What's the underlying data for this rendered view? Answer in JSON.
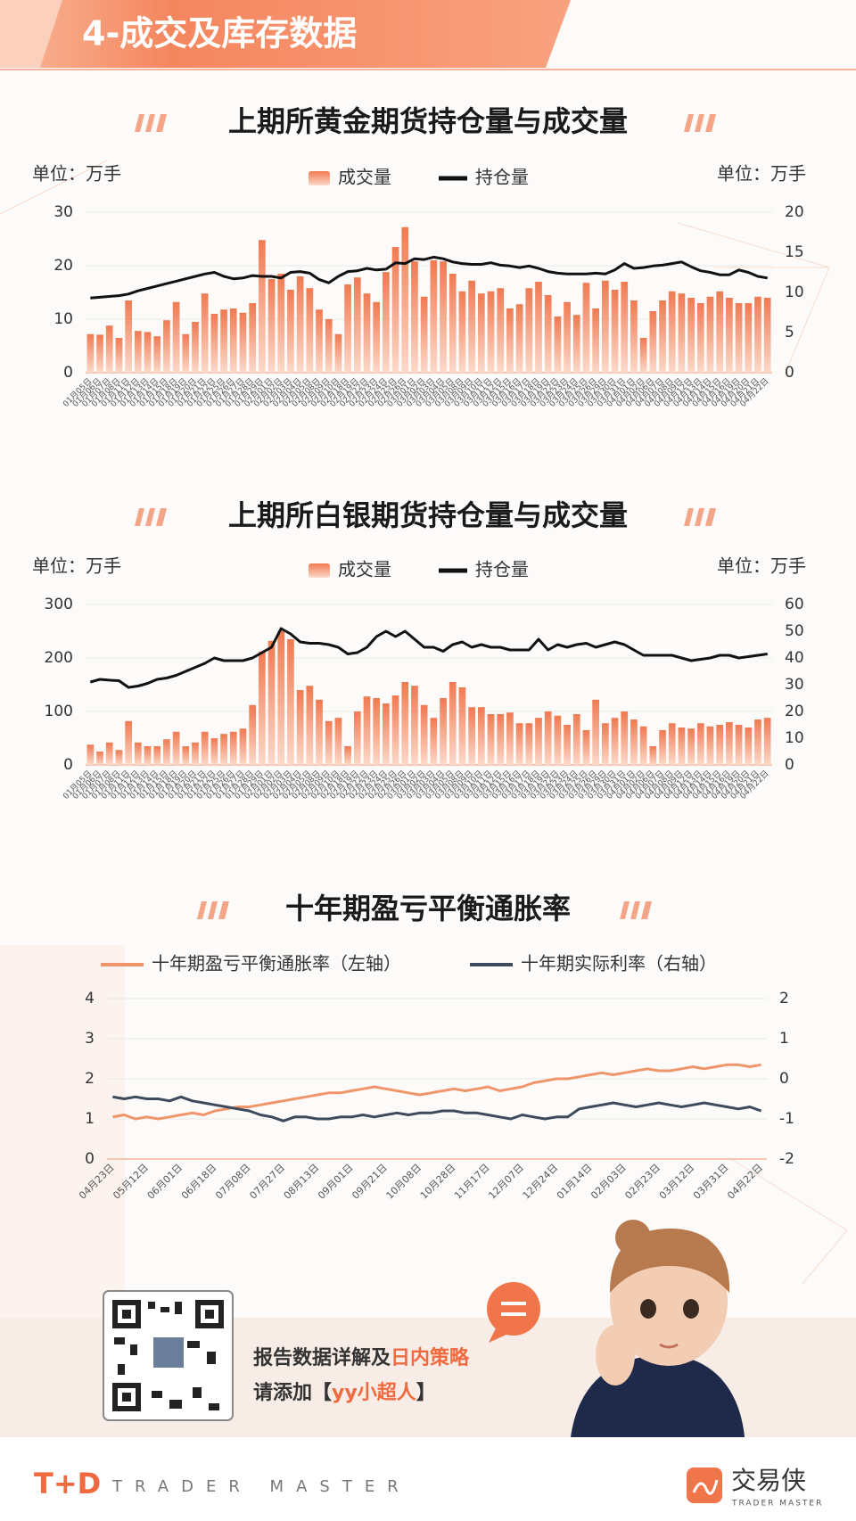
{
  "header": {
    "title": "4-成交及库存数据"
  },
  "chart_data": [
    {
      "type": "combo",
      "title": "上期所黄金期货持仓量与成交量",
      "unit_left": "单位：万手",
      "unit_right": "单位：万手",
      "categories": [
        "01月05日",
        "01月06日",
        "01月07日",
        "01月08日",
        "01月11日",
        "01月12日",
        "01月13日",
        "01月14日",
        "01月15日",
        "01月18日",
        "01月19日",
        "01月20日",
        "01月21日",
        "01月22日",
        "01月25日",
        "01月26日",
        "01月27日",
        "01月28日",
        "01月29日",
        "02月01日",
        "02月02日",
        "02月03日",
        "02月04日",
        "02月05日",
        "02月08日",
        "02月09日",
        "02月10日",
        "02月18日",
        "02月19日",
        "02月22日",
        "02月23日",
        "02月24日",
        "02月25日",
        "02月26日",
        "03月01日",
        "03月02日",
        "03月03日",
        "03月04日",
        "03月05日",
        "03月08日",
        "03月09日",
        "03月10日",
        "03月11日",
        "03月12日",
        "03月15日",
        "03月16日",
        "03月17日",
        "03月18日",
        "03月19日",
        "03月22日",
        "03月23日",
        "03月24日",
        "03月25日",
        "03月26日",
        "03月29日",
        "03月30日",
        "03月31日",
        "04月01日",
        "04月02日",
        "04月06日",
        "04月07日",
        "04月08日",
        "04月09日",
        "04月12日",
        "04月13日",
        "04月14日",
        "04月15日",
        "04月16日",
        "04月19日",
        "04月20日",
        "04月21日",
        "04月22日"
      ],
      "series": [
        {
          "name": "成交量",
          "kind": "bar",
          "color": "#f07a52",
          "values": [
            7.2,
            7.1,
            8.8,
            6.5,
            13.5,
            7.8,
            7.6,
            6.8,
            9.8,
            13.2,
            7.2,
            9.5,
            14.8,
            11.0,
            11.8,
            12.0,
            11.2,
            13.0,
            24.8,
            17.5,
            18.5,
            15.5,
            18.0,
            15.8,
            11.8,
            10.0,
            7.2,
            16.5,
            17.8,
            14.8,
            13.2,
            18.8,
            23.5,
            27.2,
            20.8,
            14.2,
            21.0,
            20.8,
            18.5,
            15.2,
            17.2,
            14.8,
            15.2,
            15.8,
            12.0,
            12.8,
            15.8,
            17.0,
            14.5,
            10.5,
            13.2,
            10.8,
            16.8,
            12.0,
            17.2,
            15.5,
            17.0,
            13.5,
            6.5,
            11.5,
            13.5,
            15.2,
            14.8,
            14.0,
            13.0,
            14.2,
            15.2,
            14.0,
            13.0,
            13.0,
            14.2,
            14.0
          ]
        },
        {
          "name": "持仓量",
          "kind": "line",
          "axis": "y2",
          "color": "#111111",
          "values": [
            9.3,
            9.4,
            9.5,
            9.6,
            9.8,
            10.2,
            10.5,
            10.8,
            11.1,
            11.4,
            11.7,
            12.0,
            12.3,
            12.5,
            12.0,
            11.7,
            11.8,
            12.1,
            12.0,
            12.0,
            11.8,
            12.5,
            12.6,
            12.4,
            11.6,
            11.2,
            12.0,
            12.6,
            12.7,
            13.0,
            12.8,
            12.9,
            13.7,
            13.6,
            14.2,
            14.1,
            14.4,
            14.2,
            13.8,
            13.6,
            13.5,
            13.5,
            13.7,
            13.4,
            13.3,
            13.1,
            13.3,
            13.0,
            12.6,
            12.4,
            12.3,
            12.3,
            12.3,
            12.4,
            12.3,
            12.8,
            13.6,
            13.0,
            13.1,
            13.3,
            13.4,
            13.6,
            13.8,
            13.2,
            12.7,
            12.5,
            12.2,
            12.2,
            12.8,
            12.5,
            12.0,
            11.8
          ]
        }
      ],
      "ylim": [
        0,
        30
      ],
      "yticks": [
        0,
        10,
        20,
        30
      ],
      "y2lim": [
        0,
        20
      ],
      "y2ticks": [
        0,
        5,
        10,
        15,
        20
      ],
      "grid": true
    },
    {
      "type": "combo",
      "title": "上期所白银期货持仓量与成交量",
      "unit_left": "单位：万手",
      "unit_right": "单位：万手",
      "categories": [
        "01月05日",
        "01月06日",
        "01月07日",
        "01月08日",
        "01月11日",
        "01月12日",
        "01月13日",
        "01月14日",
        "01月15日",
        "01月18日",
        "01月19日",
        "01月20日",
        "01月21日",
        "01月22日",
        "01月25日",
        "01月26日",
        "01月27日",
        "01月28日",
        "01月29日",
        "02月01日",
        "02月02日",
        "02月03日",
        "02月04日",
        "02月05日",
        "02月08日",
        "02月09日",
        "02月10日",
        "02月18日",
        "02月19日",
        "02月22日",
        "02月23日",
        "02月24日",
        "02月25日",
        "02月26日",
        "03月01日",
        "03月02日",
        "03月03日",
        "03月04日",
        "03月05日",
        "03月08日",
        "03月09日",
        "03月10日",
        "03月11日",
        "03月12日",
        "03月15日",
        "03月16日",
        "03月17日",
        "03月18日",
        "03月19日",
        "03月22日",
        "03月23日",
        "03月24日",
        "03月25日",
        "03月26日",
        "03月29日",
        "03月30日",
        "03月31日",
        "04月01日",
        "04月02日",
        "04月06日",
        "04月07日",
        "04月08日",
        "04月09日",
        "04月12日",
        "04月13日",
        "04月14日",
        "04月15日",
        "04月16日",
        "04月19日",
        "04月20日",
        "04月21日",
        "04月22日"
      ],
      "series": [
        {
          "name": "成交量",
          "kind": "bar",
          "color": "#f07a52",
          "values": [
            38,
            25,
            42,
            28,
            82,
            42,
            35,
            35,
            48,
            62,
            35,
            42,
            62,
            50,
            58,
            62,
            68,
            112,
            212,
            232,
            250,
            235,
            140,
            148,
            122,
            82,
            88,
            35,
            100,
            128,
            125,
            115,
            130,
            155,
            148,
            112,
            88,
            125,
            155,
            145,
            108,
            108,
            95,
            95,
            98,
            78,
            78,
            88,
            100,
            92,
            75,
            95,
            65,
            122,
            78,
            88,
            100,
            85,
            72,
            35,
            65,
            78,
            70,
            68,
            78,
            72,
            75,
            80,
            75,
            70,
            85,
            88
          ]
        },
        {
          "name": "持仓量",
          "kind": "line",
          "axis": "y2",
          "color": "#111111",
          "values": [
            31,
            32,
            31.7,
            31.5,
            29,
            29.5,
            30.5,
            32,
            32.5,
            33.5,
            35,
            36.5,
            38,
            40,
            39,
            39,
            39,
            40,
            42,
            44,
            51,
            49,
            46,
            45.5,
            45.5,
            45,
            44,
            41.5,
            42,
            44,
            48,
            50,
            48,
            50,
            47,
            44,
            44,
            42.5,
            45,
            46,
            44,
            45,
            44,
            44,
            43,
            43,
            43,
            47,
            43,
            45,
            44,
            45,
            45.5,
            44,
            45,
            46,
            45,
            43,
            41,
            41,
            41,
            41,
            40,
            39,
            39.5,
            40,
            41,
            41,
            40,
            40.5,
            41,
            41.5
          ]
        }
      ],
      "ylim": [
        0,
        300
      ],
      "yticks": [
        0,
        100,
        200,
        300
      ],
      "y2lim": [
        0,
        60
      ],
      "y2ticks": [
        0,
        10,
        20,
        30,
        40,
        50,
        60
      ],
      "grid": true
    },
    {
      "type": "line",
      "title": "十年期盈亏平衡通胀率",
      "categories": [
        "04月23日",
        null,
        null,
        "05月12日",
        null,
        null,
        "06月01日",
        null,
        null,
        "06月18日",
        null,
        null,
        "07月08日",
        null,
        null,
        "07月27日",
        null,
        null,
        "08月13日",
        null,
        null,
        "09月01日",
        null,
        null,
        "09月21日",
        null,
        null,
        "10月08日",
        null,
        null,
        "10月28日",
        null,
        null,
        "11月17日",
        null,
        null,
        "12月07日",
        null,
        null,
        "12月24日",
        null,
        null,
        "01月14日",
        null,
        null,
        "02月03日",
        null,
        null,
        "02月23日",
        null,
        null,
        "03月12日",
        null,
        null,
        "03月31日",
        null,
        null,
        "04月22日"
      ],
      "series": [
        {
          "name": "十年期盈亏平衡通胀率（左轴）",
          "color": "#f0956a",
          "values": [
            1.05,
            1.1,
            1.0,
            1.05,
            1.0,
            1.05,
            1.1,
            1.15,
            1.1,
            1.2,
            1.25,
            1.3,
            1.3,
            1.35,
            1.4,
            1.45,
            1.5,
            1.55,
            1.6,
            1.65,
            1.65,
            1.7,
            1.75,
            1.8,
            1.75,
            1.7,
            1.65,
            1.6,
            1.65,
            1.7,
            1.75,
            1.7,
            1.75,
            1.8,
            1.7,
            1.75,
            1.8,
            1.9,
            1.95,
            2.0,
            2.0,
            2.05,
            2.1,
            2.15,
            2.1,
            2.15,
            2.2,
            2.25,
            2.2,
            2.2,
            2.25,
            2.3,
            2.25,
            2.3,
            2.35,
            2.35,
            2.3,
            2.35
          ]
        },
        {
          "name": "十年期实际利率（右轴）",
          "axis": "y2",
          "color": "#3d4a5c",
          "values": [
            -0.45,
            -0.5,
            -0.45,
            -0.5,
            -0.5,
            -0.55,
            -0.45,
            -0.55,
            -0.6,
            -0.65,
            -0.7,
            -0.75,
            -0.8,
            -0.9,
            -0.95,
            -1.05,
            -0.95,
            -0.95,
            -1.0,
            -1.0,
            -0.95,
            -0.95,
            -0.9,
            -0.95,
            -0.9,
            -0.85,
            -0.9,
            -0.85,
            -0.85,
            -0.8,
            -0.8,
            -0.85,
            -0.85,
            -0.9,
            -0.95,
            -1.0,
            -0.9,
            -0.95,
            -1.0,
            -0.95,
            -0.95,
            -0.75,
            -0.7,
            -0.65,
            -0.6,
            -0.65,
            -0.7,
            -0.65,
            -0.6,
            -0.65,
            -0.7,
            -0.65,
            -0.6,
            -0.65,
            -0.7,
            -0.75,
            -0.7,
            -0.8
          ]
        }
      ],
      "ylim": [
        0,
        4
      ],
      "yticks": [
        0,
        1,
        2,
        3,
        4
      ],
      "y2lim": [
        -2,
        2
      ],
      "y2ticks": [
        -2,
        -1,
        0,
        1,
        2
      ],
      "grid": true
    }
  ],
  "footer": {
    "line1": "报告数据详解及",
    "line1_highlight": "日内策略",
    "line2_open": "请添加【",
    "line2_highlight": "yy小超人",
    "line2_close": "】",
    "brand_left": "T+D",
    "brand_left_sub": "TRADER MASTER",
    "brand_right": "交易侠",
    "brand_right_sub": "TRADER MASTER"
  }
}
